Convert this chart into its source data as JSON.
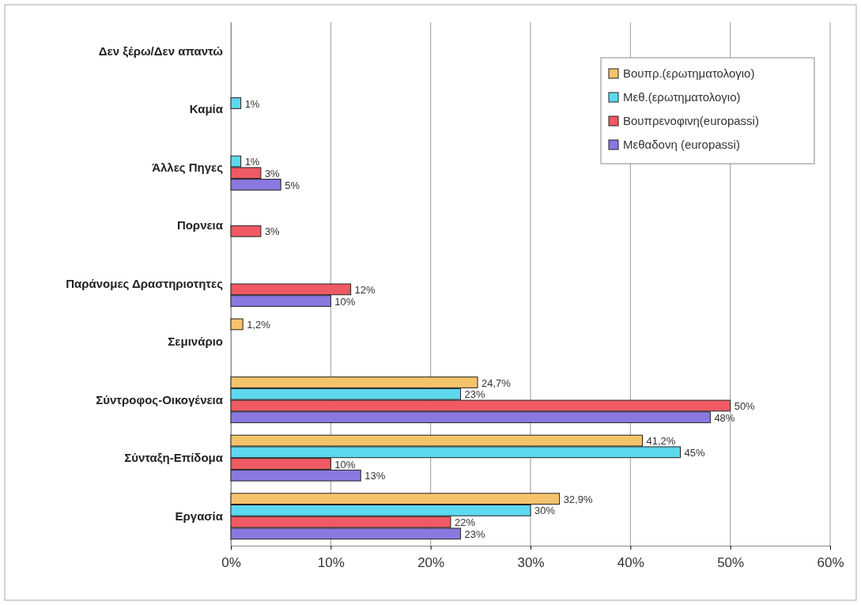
{
  "chart_data": {
    "type": "bar",
    "orientation": "horizontal",
    "categories": [
      "Δεν ξέρω/Δεν απαντώ",
      "Καμία",
      "Άλλες Πηγες",
      "Πορνεια",
      "Παράνομες Δραστηριοτητες",
      "Σεμινάριο",
      "Σύντροφος-Οικογένεια",
      "Σύνταξη-Επίδομα",
      "Εργασία"
    ],
    "series": [
      {
        "name": "Βουπρ.(ερωτηματολογιο)",
        "color": "#f5c36b",
        "values": [
          null,
          null,
          null,
          null,
          null,
          1.2,
          24.7,
          41.2,
          32.9
        ],
        "value_labels": [
          null,
          null,
          null,
          null,
          null,
          "1,2%",
          "24,7%",
          "41,2%",
          "32,9%"
        ]
      },
      {
        "name": "Μεθ.(ερωτηματολογιο)",
        "color": "#5ed8ee",
        "values": [
          null,
          1,
          1,
          null,
          null,
          null,
          23,
          45,
          30
        ],
        "value_labels": [
          null,
          "1%",
          "1%",
          null,
          null,
          null,
          "23%",
          "45%",
          "30%"
        ]
      },
      {
        "name": "Βουπρενοφινη(europassi)",
        "color": "#ef5a64",
        "values": [
          null,
          null,
          3,
          3,
          12,
          null,
          50,
          10,
          22
        ],
        "value_labels": [
          null,
          null,
          "3%",
          "3%",
          "12%",
          null,
          "50%",
          "10%",
          "22%"
        ]
      },
      {
        "name": "Μεθαδονη (europassi)",
        "color": "#8a78e0",
        "values": [
          null,
          null,
          5,
          null,
          10,
          null,
          48,
          13,
          23
        ],
        "value_labels": [
          null,
          null,
          "5%",
          null,
          "10%",
          null,
          "48%",
          "13%",
          "23%"
        ]
      }
    ],
    "xlim": [
      0,
      60
    ],
    "xticks": [
      {
        "value": 0,
        "label": "0%"
      },
      {
        "value": 10,
        "label": "10%"
      },
      {
        "value": 20,
        "label": "20%"
      },
      {
        "value": 30,
        "label": "30%"
      },
      {
        "value": 40,
        "label": "40%"
      },
      {
        "value": 50,
        "label": "50%"
      },
      {
        "value": 60,
        "label": "60%"
      }
    ],
    "grid": "x",
    "legend": "top right"
  }
}
